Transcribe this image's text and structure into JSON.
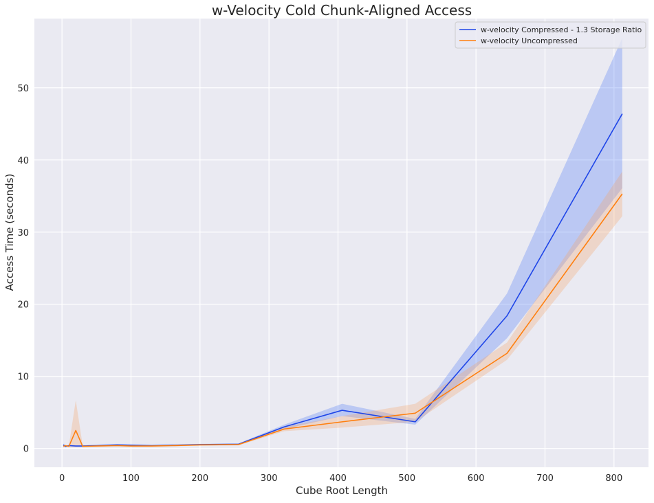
{
  "chart_data": {
    "type": "line",
    "title": "w-Velocity Cold Chunk-Aligned Access",
    "xlabel": "Cube Root Length",
    "ylabel": "Access Time (seconds)",
    "xlim": [
      -40,
      850
    ],
    "ylim": [
      -2.6,
      59.6
    ],
    "xticks": [
      0,
      100,
      200,
      300,
      400,
      500,
      600,
      700,
      800
    ],
    "yticks": [
      0,
      10,
      20,
      30,
      40,
      50
    ],
    "grid": true,
    "legend_position": "top-right",
    "background_color": "#eaeaf2",
    "series": [
      {
        "name": "w-velocity Compressed - 1.3 Storage Ratio",
        "color": "#1f46e8",
        "band_color": "#4f7af5",
        "x": [
          2,
          5,
          10,
          20,
          30,
          50,
          80,
          100,
          130,
          160,
          200,
          256,
          322,
          406,
          512,
          645,
          812
        ],
        "y": [
          0.5,
          0.3,
          0.4,
          0.35,
          0.35,
          0.4,
          0.5,
          0.45,
          0.4,
          0.45,
          0.55,
          0.6,
          3.0,
          5.3,
          3.7,
          18.4,
          46.4
        ],
        "lower": [
          0.35,
          0.2,
          0.3,
          0.25,
          0.25,
          0.3,
          0.4,
          0.35,
          0.3,
          0.35,
          0.45,
          0.5,
          2.7,
          4.5,
          3.3,
          15.3,
          36.1
        ],
        "upper": [
          0.65,
          0.4,
          0.5,
          0.45,
          0.45,
          0.5,
          0.6,
          0.55,
          0.5,
          0.55,
          0.65,
          0.7,
          3.3,
          6.2,
          4.1,
          21.5,
          56.9
        ]
      },
      {
        "name": "w-velocity Uncompressed",
        "color": "#ff7f0e",
        "band_color": "#f5a46a",
        "x": [
          2,
          5,
          10,
          20,
          30,
          50,
          80,
          100,
          130,
          160,
          200,
          256,
          322,
          406,
          512,
          645,
          812
        ],
        "y": [
          0.3,
          0.4,
          0.3,
          2.5,
          0.3,
          0.35,
          0.4,
          0.35,
          0.35,
          0.4,
          0.5,
          0.55,
          2.7,
          3.7,
          4.9,
          13.2,
          35.3
        ],
        "lower": [
          0.2,
          0.3,
          0.2,
          0.2,
          0.2,
          0.25,
          0.3,
          0.25,
          0.25,
          0.3,
          0.4,
          0.45,
          2.4,
          2.9,
          3.7,
          12.3,
          32.2
        ],
        "upper": [
          0.4,
          0.5,
          0.4,
          6.7,
          0.4,
          0.45,
          0.5,
          0.45,
          0.45,
          0.5,
          0.6,
          0.65,
          3.0,
          4.5,
          6.2,
          14.7,
          38.4
        ]
      }
    ]
  }
}
